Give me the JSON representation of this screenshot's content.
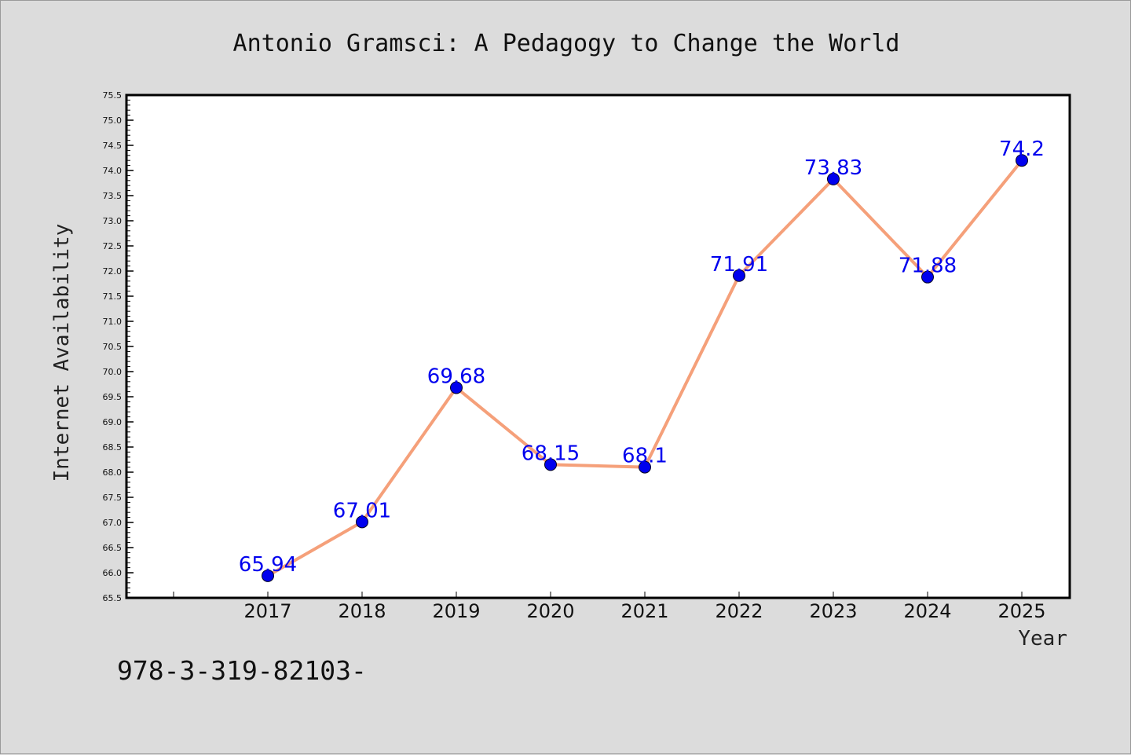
{
  "chart_data": {
    "type": "line",
    "title": "Antonio Gramsci: A Pedagogy to Change the World",
    "xlabel": "Year",
    "ylabel": "Internet Availability",
    "categories": [
      "2017",
      "2018",
      "2019",
      "2020",
      "2021",
      "2022",
      "2023",
      "2024",
      "2025"
    ],
    "series": [
      {
        "values": [
          65.94,
          67.01,
          69.68,
          68.15,
          68.1,
          71.91,
          73.83,
          71.88,
          74.2
        ],
        "labels": [
          "65.94",
          "67.01",
          "69.68",
          "68.15",
          "68.1",
          "71.91",
          "73.83",
          "71.88",
          "74.2"
        ]
      }
    ],
    "ylim": [
      65.5,
      75.5
    ],
    "yticks": [
      "65.5",
      "66.0",
      "66.5",
      "67.0",
      "67.5",
      "68.0",
      "68.5",
      "69.0",
      "69.5",
      "70.0",
      "70.5",
      "71.0",
      "71.5",
      "72.0",
      "72.5",
      "73.0",
      "73.5",
      "74.0",
      "74.5",
      "75.0",
      "75.5"
    ],
    "grid": false,
    "line_color": "#f5a07a",
    "marker_color": "#0000ee",
    "label_color": "#0000ee"
  },
  "footer": {
    "text": "978-3-319-82103-"
  }
}
